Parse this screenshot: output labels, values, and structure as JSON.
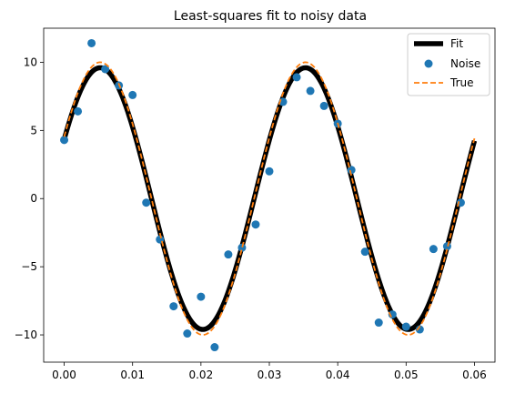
{
  "chart_data": {
    "type": "line",
    "title": "Least-squares fit to noisy data",
    "xlabel": "",
    "ylabel": "",
    "xlim": [
      -0.003,
      0.063
    ],
    "ylim": [
      -12,
      12.5
    ],
    "xticks": [
      0.0,
      0.01,
      0.02,
      0.03,
      0.04,
      0.05,
      0.06
    ],
    "xtick_labels": [
      "0.00",
      "0.01",
      "0.02",
      "0.03",
      "0.04",
      "0.05",
      "0.06"
    ],
    "yticks": [
      -10,
      -5,
      0,
      5,
      10
    ],
    "ytick_labels": [
      "−10",
      "−5",
      "0",
      "5",
      "10"
    ],
    "grid": false,
    "legend_position": "top-right",
    "series": [
      {
        "name": "Fit",
        "kind": "line",
        "color": "#000000",
        "model": {
          "amplitude": 9.6,
          "frequency": 33.3,
          "phase": 0.47,
          "offset": 0.0
        },
        "x_range": [
          0.0,
          0.06
        ]
      },
      {
        "name": "Noise",
        "kind": "scatter",
        "color": "#1f77b4",
        "x": [
          0.0,
          0.002,
          0.004,
          0.006,
          0.008,
          0.01,
          0.012,
          0.014,
          0.016,
          0.018,
          0.02,
          0.022,
          0.024,
          0.026,
          0.028,
          0.03,
          0.032,
          0.034,
          0.036,
          0.038,
          0.04,
          0.042,
          0.044,
          0.046,
          0.048,
          0.05,
          0.052,
          0.054,
          0.056,
          0.058
        ],
        "y": [
          4.3,
          6.4,
          11.4,
          9.5,
          8.3,
          7.6,
          -0.3,
          -3.0,
          -7.9,
          -9.9,
          -7.2,
          -10.9,
          -4.1,
          -3.6,
          -1.9,
          2.0,
          7.1,
          8.9,
          7.9,
          6.8,
          5.5,
          2.1,
          -3.9,
          -9.1,
          -8.5,
          -9.4,
          -9.6,
          -3.7,
          -3.5,
          -0.3
        ]
      },
      {
        "name": "True",
        "kind": "line",
        "color": "#ff7f0e",
        "dashed": true,
        "model": {
          "amplitude": 10.0,
          "frequency": 33.3,
          "phase": 0.47,
          "offset": 0.0
        },
        "x_range": [
          0.0,
          0.06
        ]
      }
    ]
  }
}
